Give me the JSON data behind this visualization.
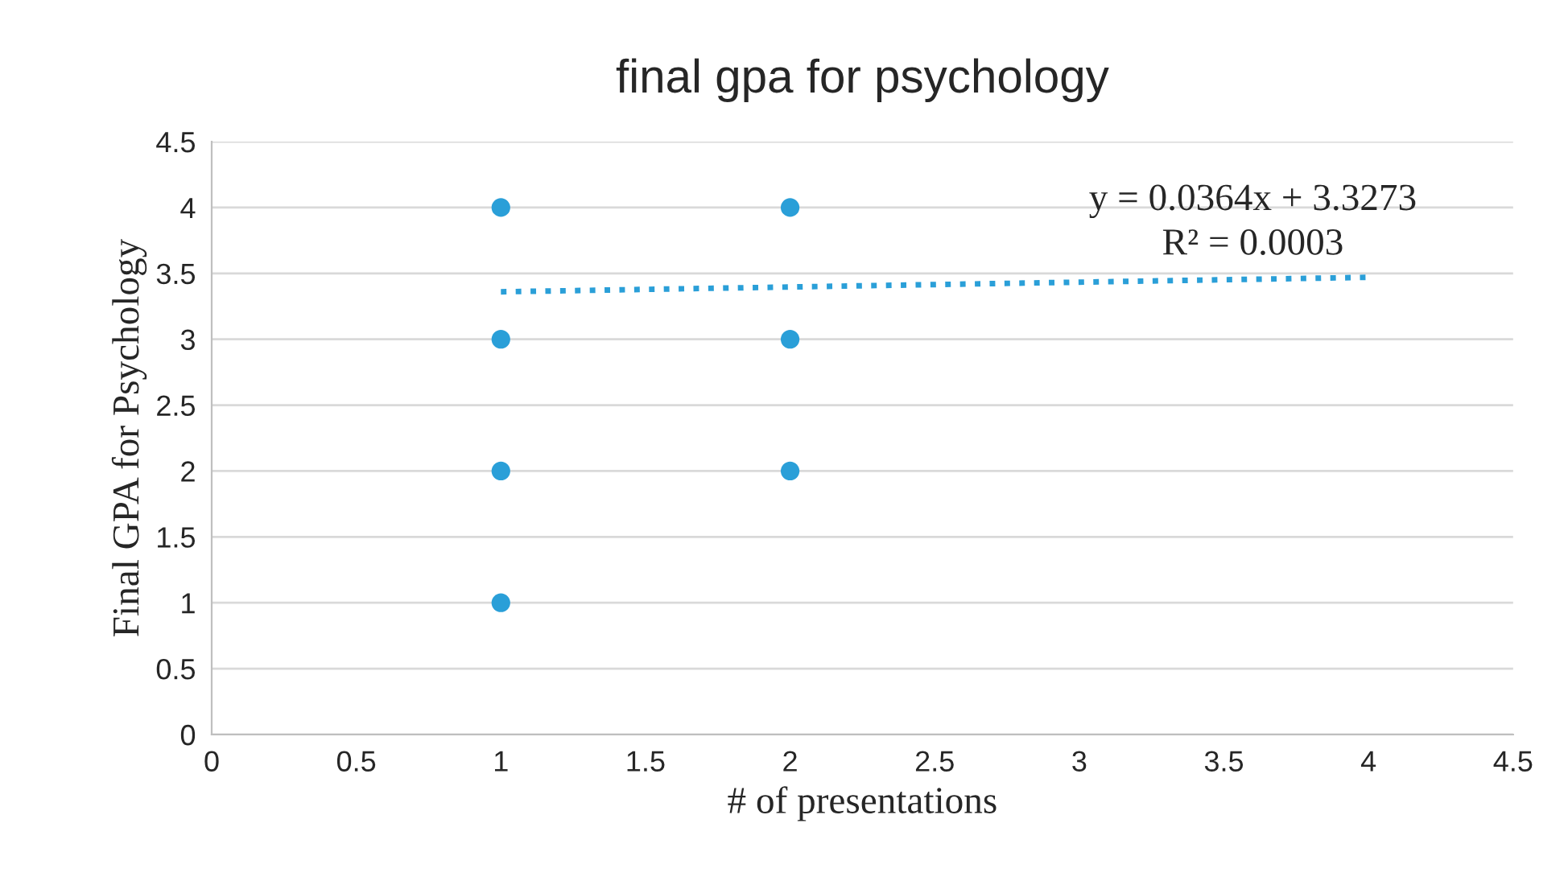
{
  "chart_data": {
    "type": "scatter",
    "title": "final gpa for psychology",
    "xlabel": "# of presentations",
    "ylabel": "Final GPA for Psychology",
    "series": [
      {
        "color": "#2a9fd8",
        "x": [
          1,
          1,
          1,
          1,
          2,
          2,
          2
        ],
        "values": [
          4,
          3,
          2,
          1,
          4,
          3,
          2
        ],
        "marker": "circle"
      },
      {
        "type": "line",
        "color": "#2a9fd8",
        "x": [
          1,
          4
        ],
        "values": [
          3.36,
          3.47
        ],
        "line_style": "dotted"
      }
    ],
    "annotations": [
      "y = 0.0364x + 3.3273",
      "R² = 0.0003"
    ],
    "xlim": [
      0,
      4.5
    ],
    "xticks": [
      0,
      0.5,
      1,
      1.5,
      2,
      2.5,
      3,
      3.5,
      4,
      4.5
    ],
    "ylim": [
      0,
      4.5
    ],
    "yticks": [
      0,
      0.5,
      1,
      1.5,
      2,
      2.5,
      3,
      3.5,
      4,
      4.5
    ],
    "grid": "y",
    "legend": false
  }
}
